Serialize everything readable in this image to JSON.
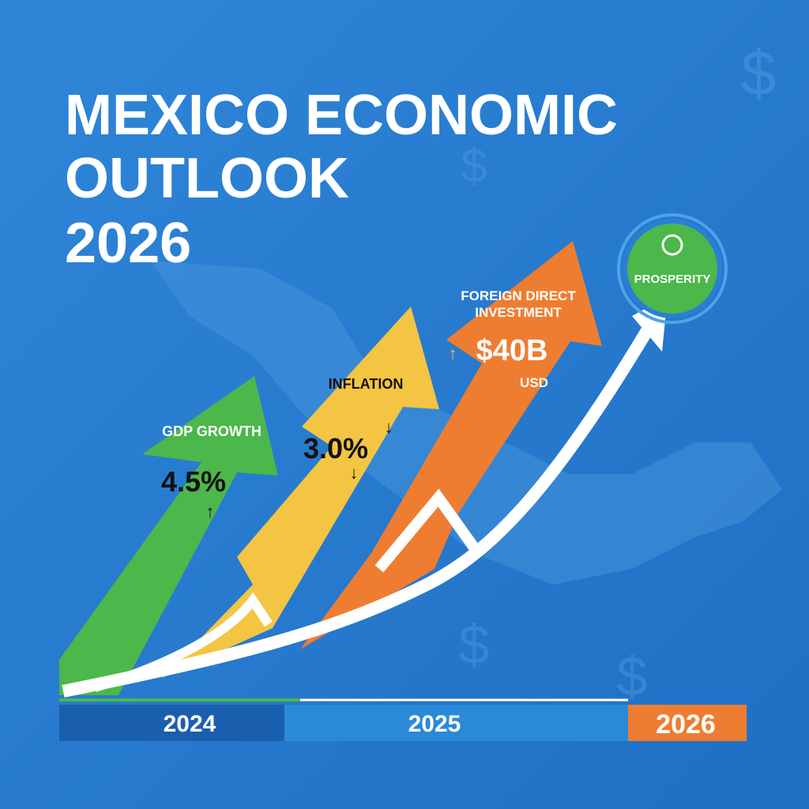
{
  "header": {
    "title_lines": [
      "MEXICO ECONOMIC",
      "OUTLOOK",
      "2026"
    ]
  },
  "indicators": [
    {
      "label_lines": [
        "GDP GROWTH"
      ],
      "value": "4.5%"
    },
    {
      "label_lines": [
        "INFLATION"
      ],
      "value": "3.0%"
    },
    {
      "label_lines": [
        "FOREIGN DIRECT",
        "INVESTMENT"
      ],
      "value": "$40B",
      "unit": "USD"
    }
  ],
  "badge": {
    "label": "PROSPERITY"
  },
  "timeline": {
    "years": [
      "2024",
      "2025",
      "2026"
    ]
  }
}
